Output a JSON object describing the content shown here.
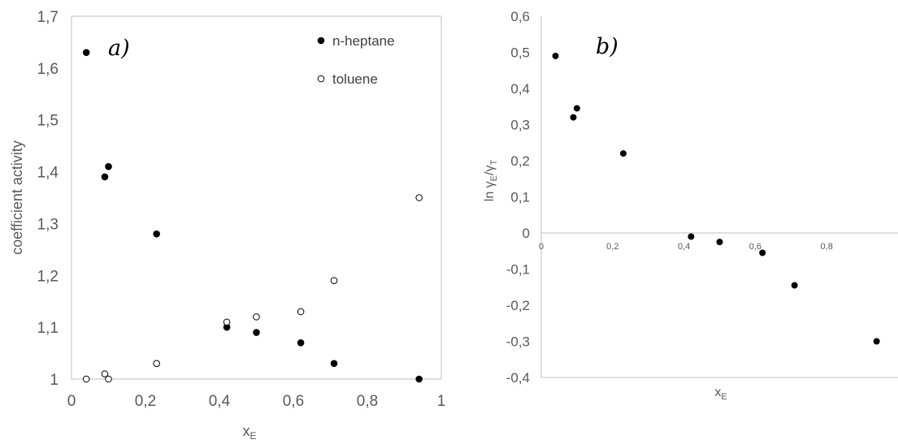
{
  "chart_data": [
    {
      "type": "scatter",
      "panel_label": "a)",
      "xlabel": "x",
      "xlabel_sub": "E",
      "ylabel": "coefficient activity",
      "xlim": [
        0,
        1
      ],
      "ylim": [
        1,
        1.7
      ],
      "x_ticks": [
        "0",
        "0,2",
        "0,4",
        "0,6",
        "0,8",
        "1"
      ],
      "y_ticks": [
        "1",
        "1,1",
        "1,2",
        "1,3",
        "1,4",
        "1,5",
        "1,6",
        "1,7"
      ],
      "grid": false,
      "legend": "top-right",
      "series": [
        {
          "name": "n-heptane",
          "marker": "filled",
          "color": "#000000",
          "x": [
            0.04,
            0.09,
            0.1,
            0.23,
            0.42,
            0.5,
            0.62,
            0.71,
            0.94
          ],
          "y": [
            1.63,
            1.39,
            1.41,
            1.28,
            1.1,
            1.09,
            1.07,
            1.03,
            1.0
          ]
        },
        {
          "name": "toluene",
          "marker": "open",
          "color": "#000000",
          "x": [
            0.04,
            0.09,
            0.1,
            0.23,
            0.42,
            0.5,
            0.62,
            0.71,
            0.94
          ],
          "y": [
            1.0,
            1.01,
            1.0,
            1.03,
            1.11,
            1.12,
            1.13,
            1.19,
            1.35
          ]
        }
      ]
    },
    {
      "type": "scatter",
      "panel_label": "b)",
      "xlabel": "x",
      "xlabel_sub": "E",
      "ylabel": "ln γ",
      "ylabel_sub1": "E",
      "ylabel_mid": "/γ",
      "ylabel_sub2": "T",
      "xlim": [
        0,
        1
      ],
      "ylim": [
        -0.4,
        0.6
      ],
      "x_ticks": [
        "0",
        "0,2",
        "0,4",
        "0,6",
        "0,8"
      ],
      "y_ticks": [
        "-0,4",
        "-0,3",
        "-0,2",
        "-0,1",
        "0",
        "0,1",
        "0,2",
        "0,3",
        "0,4",
        "0,5",
        "0,6"
      ],
      "grid": false,
      "series": [
        {
          "marker": "filled",
          "color": "#000000",
          "x": [
            0.04,
            0.09,
            0.1,
            0.23,
            0.42,
            0.5,
            0.62,
            0.71,
            0.94
          ],
          "y": [
            0.49,
            0.32,
            0.345,
            0.22,
            -0.01,
            -0.025,
            -0.055,
            -0.145,
            -0.3
          ]
        }
      ]
    }
  ]
}
